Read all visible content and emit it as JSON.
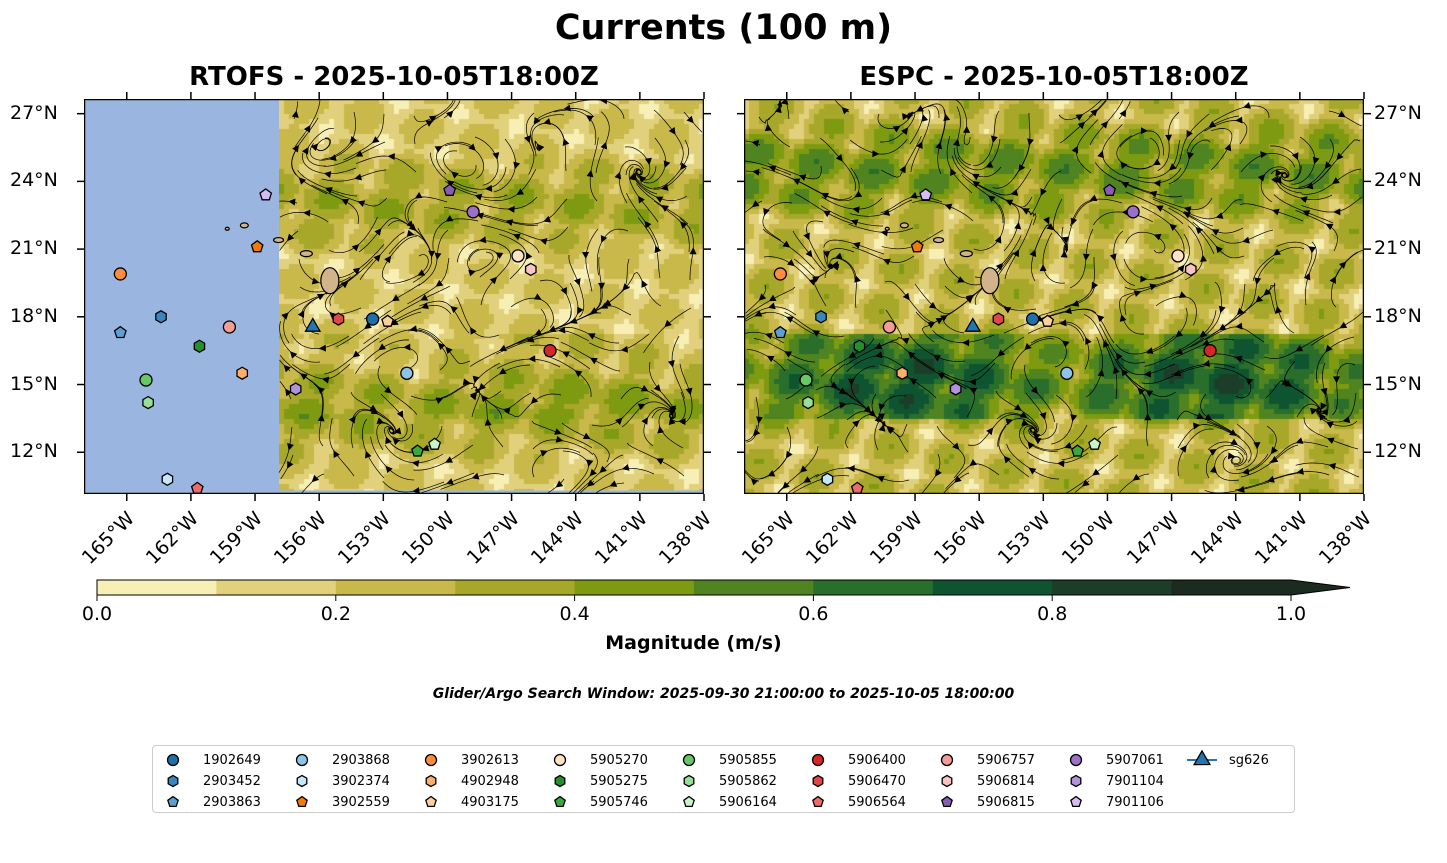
{
  "title": "Currents (100 m)",
  "panels": [
    {
      "id": "rtofs",
      "title": "RTOFS - 2025-10-05T18:00Z"
    },
    {
      "id": "espc",
      "title": "ESPC - 2025-10-05T18:00Z"
    }
  ],
  "map_extent": {
    "lon": [
      -167,
      -138
    ],
    "lat": [
      10.15,
      27.65
    ]
  },
  "lon_ticks": [
    {
      "value": -165,
      "label": "165°W"
    },
    {
      "value": -162,
      "label": "162°W"
    },
    {
      "value": -159,
      "label": "159°W"
    },
    {
      "value": -156,
      "label": "156°W"
    },
    {
      "value": -153,
      "label": "153°W"
    },
    {
      "value": -150,
      "label": "150°W"
    },
    {
      "value": -147,
      "label": "147°W"
    },
    {
      "value": -144,
      "label": "144°W"
    },
    {
      "value": -141,
      "label": "141°W"
    },
    {
      "value": -138,
      "label": "138°W"
    }
  ],
  "lat_ticks": [
    {
      "value": 27,
      "label": "27°N"
    },
    {
      "value": 24,
      "label": "24°N"
    },
    {
      "value": 21,
      "label": "21°N"
    },
    {
      "value": 18,
      "label": "18°N"
    },
    {
      "value": 15,
      "label": "15°N"
    },
    {
      "value": 12,
      "label": "12°N"
    }
  ],
  "colorbar": {
    "label": "Magnitude (m/s)",
    "range": [
      0,
      1
    ],
    "bins": [
      0,
      0.1,
      0.2,
      0.3,
      0.4,
      0.5,
      0.6,
      0.7,
      0.8,
      0.9,
      1.0
    ],
    "colors": [
      "#f7efb5",
      "#e2d17c",
      "#c9b84a",
      "#a7a82a",
      "#7e9a10",
      "#4f8420",
      "#2a6e2c",
      "#0f5431",
      "#1c3d27",
      "#1b2b1f"
    ],
    "extend": "max",
    "ticks": [
      {
        "value": 0,
        "label": "0.0"
      },
      {
        "value": 0.2,
        "label": "0.2"
      },
      {
        "value": 0.4,
        "label": "0.4"
      },
      {
        "value": 0.6,
        "label": "0.6"
      },
      {
        "value": 0.8,
        "label": "0.8"
      },
      {
        "value": 1.0,
        "label": "1.0"
      }
    ]
  },
  "search_window": "Glider/Argo Search Window: 2025-09-30 21:00:00 to 2025-10-05 18:00:00",
  "land_color": "#d2b48c",
  "mask_color": "#9ab6e0",
  "floats": [
    {
      "id": "1902649",
      "marker": "circle",
      "color": "#1f6fa8",
      "lon": -153.5,
      "lat": 17.9
    },
    {
      "id": "2903452",
      "marker": "hexagon",
      "color": "#3a86bf",
      "lon": -163.4,
      "lat": 18.0
    },
    {
      "id": "2903863",
      "marker": "pentagon",
      "color": "#5b9fd4",
      "lon": -165.3,
      "lat": 17.3
    },
    {
      "id": "2903868",
      "marker": "circle",
      "color": "#8ec3ea",
      "lon": -151.9,
      "lat": 15.5
    },
    {
      "id": "3902374",
      "marker": "hexagon",
      "color": "#c6e6fb",
      "lon": -163.1,
      "lat": 10.8
    },
    {
      "id": "3902559",
      "marker": "pentagon",
      "color": "#f07a0a",
      "lon": -158.9,
      "lat": 21.1
    },
    {
      "id": "3902613",
      "marker": "circle",
      "color": "#fd8d3c",
      "lon": -165.3,
      "lat": 19.9
    },
    {
      "id": "4902948",
      "marker": "hexagon",
      "color": "#fdae6b",
      "lon": -159.6,
      "lat": 15.5
    },
    {
      "id": "4903175",
      "marker": "pentagon",
      "color": "#fdcfa0",
      "lon": -152.8,
      "lat": 17.8
    },
    {
      "id": "5905270",
      "marker": "circle",
      "color": "#fde2c8",
      "lon": -146.7,
      "lat": 20.7
    },
    {
      "id": "5905275",
      "marker": "hexagon",
      "color": "#23912a",
      "lon": -161.6,
      "lat": 16.7
    },
    {
      "id": "5905746",
      "marker": "pentagon",
      "color": "#3aa83a",
      "lon": -151.4,
      "lat": 12.05
    },
    {
      "id": "5905855",
      "marker": "circle",
      "color": "#66c866",
      "lon": -164.1,
      "lat": 15.2
    },
    {
      "id": "5905862",
      "marker": "hexagon",
      "color": "#97e097",
      "lon": -164.0,
      "lat": 14.2
    },
    {
      "id": "5906164",
      "marker": "pentagon",
      "color": "#c8f5c8",
      "lon": -150.6,
      "lat": 12.35
    },
    {
      "id": "5906400",
      "marker": "circle",
      "color": "#d62728",
      "lon": -145.2,
      "lat": 16.5
    },
    {
      "id": "5906470",
      "marker": "hexagon",
      "color": "#e04848",
      "lon": -155.1,
      "lat": 17.9
    },
    {
      "id": "5906564",
      "marker": "pentagon",
      "color": "#ef6b6b",
      "lon": -161.7,
      "lat": 10.4
    },
    {
      "id": "5906757",
      "marker": "circle",
      "color": "#f49c98",
      "lon": -160.2,
      "lat": 17.55
    },
    {
      "id": "5906814",
      "marker": "hexagon",
      "color": "#fbc4c4",
      "lon": -146.1,
      "lat": 20.1
    },
    {
      "id": "5906815",
      "marker": "pentagon",
      "color": "#8a5db5",
      "lon": -149.9,
      "lat": 23.6
    },
    {
      "id": "5907061",
      "marker": "circle",
      "color": "#9c70c8",
      "lon": -148.8,
      "lat": 22.65
    },
    {
      "id": "7901104",
      "marker": "hexagon",
      "color": "#b391dc",
      "lon": -157.1,
      "lat": 14.8
    },
    {
      "id": "7901106",
      "marker": "pentagon",
      "color": "#d6bcf2",
      "lon": -158.5,
      "lat": 23.4
    },
    {
      "id": "sg626",
      "marker": "triangle",
      "color": "#1f77b4",
      "lon": -156.3,
      "lat": 17.55
    }
  ]
}
